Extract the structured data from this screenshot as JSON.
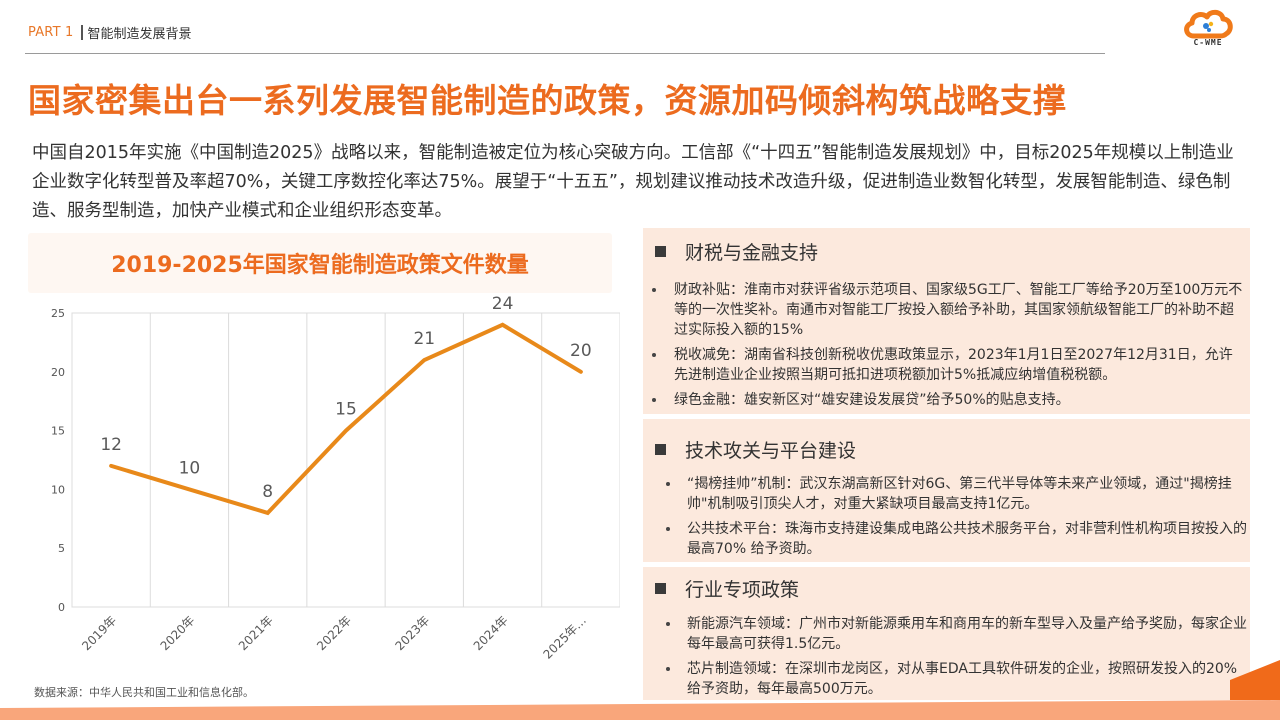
{
  "header": {
    "part_label": "PART 1",
    "section_label": "智能制造发展背景"
  },
  "logo": {
    "text": "C-WME",
    "icon": "cloud-logo-icon"
  },
  "title": "国家密集出台一系列发展智能制造的政策，资源加码倾斜构筑战略支撑",
  "intro": "中国自2015年实施《中国制造2025》战略以来，智能制造被定位为核心突破方向。工信部《“十四五”智能制造发展规划》中，目标2025年规模以上制造业企业数字化转型普及率超70%，关键工序数控化率达75%。展望于“十五五”，规划建议推动技术改造升级，促进制造业数智化转型，发展智能制造、绿色制造、服务型制造，加快产业模式和企业组织形态变革。",
  "colors": {
    "accent": "#EC6B1F",
    "line": "#E8891A",
    "panel_bg": "#FCE9DD",
    "chart_head_bg": "#FEF7F2",
    "band": "#F9A67B",
    "band_dark": "#F06A1A"
  },
  "chart_data": {
    "type": "line",
    "title": "2019-2025年国家智能制造政策文件数量",
    "categories": [
      "2019年",
      "2020年",
      "2021年",
      "2022年",
      "2023年",
      "2024年",
      "2025年…"
    ],
    "series": [
      {
        "name": "政策文件数量",
        "values": [
          12,
          10,
          8,
          15,
          21,
          24,
          20
        ]
      }
    ],
    "data_labels": [
      "12",
      "10",
      "8",
      "15",
      "21",
      "24",
      "20"
    ],
    "y_ticks": [
      "0",
      "5",
      "10",
      "15",
      "20",
      "25"
    ],
    "ylim": [
      0,
      25
    ],
    "xlabel": "",
    "ylabel": "",
    "grid": "vertical",
    "legend": "none",
    "source": "数据来源：中华人民共和国工业和信息化部。"
  },
  "panels": [
    {
      "heading": "财税与金融支持",
      "items": [
        {
          "text": "财政补贴：淮南市对获评省级示范项目、国家级5G工厂、智能工厂等给予20万至100万元不等的一次性奖补。南通市对智能工厂按投入额给予补助，其国家领航级智能工厂的补助不超过实际投入额的15%"
        },
        {
          "text": "税收减免：湖南省科技创新税收优惠政策显示，2023年1月1日至2027年12月31日，允许先进制造业企业按照当期可抵扣进项税额加计5%抵减应纳增值税税额。"
        },
        {
          "text": "绿色金融：雄安新区对“雄安建设发展贷”给予50%的贴息支持。"
        }
      ]
    },
    {
      "heading": "技术攻关与平台建设",
      "items": [
        {
          "text": "“揭榜挂帅”机制：武汉东湖高新区针对6G、第三代半导体等未来产业领域，通过\"揭榜挂帅\"机制吸引顶尖人才，对重大紧缺项目最高支持1亿元。"
        },
        {
          "text": "公共技术平台：珠海市支持建设集成电路公共技术服务平台，对非营利性机构项目按投入的最高70% 给予资助。"
        }
      ]
    },
    {
      "heading": "行业专项政策",
      "items": [
        {
          "text": "新能源汽车领域：广州市对新能源乘用车和商用车的新车型导入及量产给予奖励，每家企业每年最高可获得1.5亿元。"
        },
        {
          "text": "芯片制造领域：在深圳市龙岗区，对从事EDA工具软件研发的企业，按照研发投入的20% 给予资助，每年最高500万元。"
        }
      ]
    }
  ]
}
